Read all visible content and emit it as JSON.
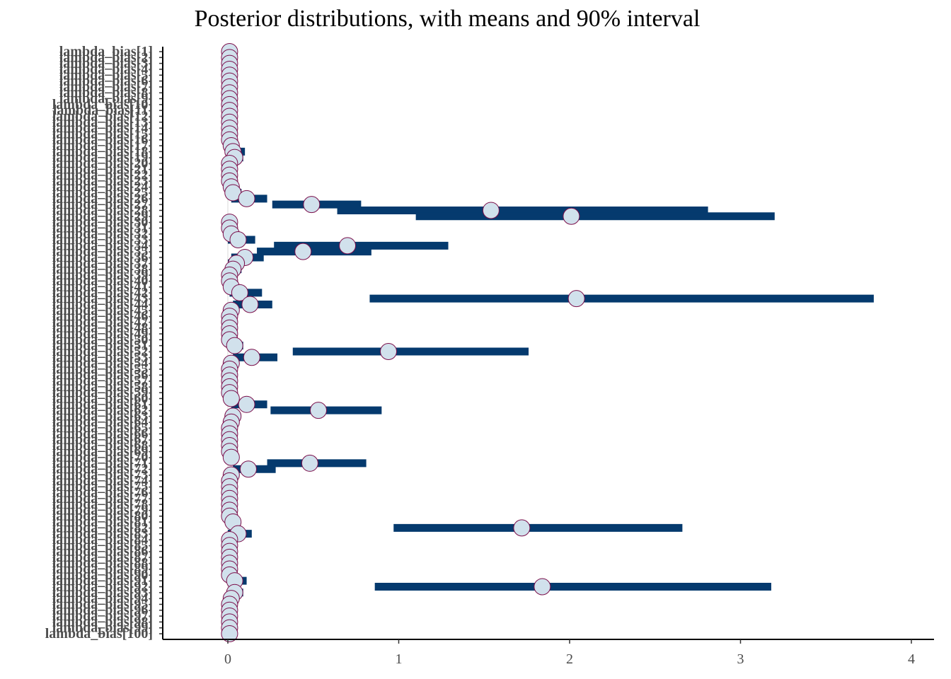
{
  "chart_data": {
    "type": "interval",
    "title": "Posterior distributions, with means and 90% interval",
    "xlabel": "",
    "ylabel": "",
    "xlim": [
      -0.4,
      4.15
    ],
    "x_ticks": [
      0,
      1,
      2,
      3,
      4
    ],
    "grid": false,
    "colors": {
      "interval": "#053a6e",
      "point_fill": "#d1e1ec",
      "point_stroke": "#7b0e4a",
      "zero_line": "#d9d9d9"
    },
    "params": [
      {
        "label": "lambda_bias[1]",
        "mean": 0.01,
        "lo": 0,
        "hi": 0.04
      },
      {
        "label": "lambda_bias[2]",
        "mean": 0.01,
        "lo": 0,
        "hi": 0.04
      },
      {
        "label": "lambda_bias[3]",
        "mean": 0.01,
        "lo": 0,
        "hi": 0.04
      },
      {
        "label": "lambda_bias[4]",
        "mean": 0.01,
        "lo": 0,
        "hi": 0.04
      },
      {
        "label": "lambda_bias[5]",
        "mean": 0.01,
        "lo": 0,
        "hi": 0.04
      },
      {
        "label": "lambda_bias[6]",
        "mean": 0.01,
        "lo": 0,
        "hi": 0.04
      },
      {
        "label": "lambda_bias[7]",
        "mean": 0.01,
        "lo": 0,
        "hi": 0.04
      },
      {
        "label": "lambda_bias[8]",
        "mean": 0.01,
        "lo": 0,
        "hi": 0.04
      },
      {
        "label": "lambda_bias[9]",
        "mean": 0.01,
        "lo": 0,
        "hi": 0.04
      },
      {
        "label": "lambda_bias[10]",
        "mean": 0.01,
        "lo": 0,
        "hi": 0.04
      },
      {
        "label": "lambda_bias[11]",
        "mean": 0.01,
        "lo": 0,
        "hi": 0.04
      },
      {
        "label": "lambda_bias[12]",
        "mean": 0.01,
        "lo": 0,
        "hi": 0.04
      },
      {
        "label": "lambda_bias[13]",
        "mean": 0.01,
        "lo": 0,
        "hi": 0.04
      },
      {
        "label": "lambda_bias[14]",
        "mean": 0.01,
        "lo": 0,
        "hi": 0.04
      },
      {
        "label": "lambda_bias[15]",
        "mean": 0.01,
        "lo": 0,
        "hi": 0.04
      },
      {
        "label": "lambda_bias[16]",
        "mean": 0.01,
        "lo": 0,
        "hi": 0.04
      },
      {
        "label": "lambda_bias[17]",
        "mean": 0.02,
        "lo": 0,
        "hi": 0.05
      },
      {
        "label": "lambda_bias[18]",
        "mean": 0.03,
        "lo": 0,
        "hi": 0.1
      },
      {
        "label": "lambda_bias[19]",
        "mean": 0.04,
        "lo": 0,
        "hi": 0.09
      },
      {
        "label": "lambda_bias[20]",
        "mean": 0.01,
        "lo": 0,
        "hi": 0.04
      },
      {
        "label": "lambda_bias[21]",
        "mean": 0.01,
        "lo": 0,
        "hi": 0.04
      },
      {
        "label": "lambda_bias[22]",
        "mean": 0.01,
        "lo": 0,
        "hi": 0.04
      },
      {
        "label": "lambda_bias[23]",
        "mean": 0.01,
        "lo": 0,
        "hi": 0.05
      },
      {
        "label": "lambda_bias[24]",
        "mean": 0.02,
        "lo": 0,
        "hi": 0.06
      },
      {
        "label": "lambda_bias[25]",
        "mean": 0.03,
        "lo": 0,
        "hi": 0.08
      },
      {
        "label": "lambda_bias[26]",
        "mean": 0.11,
        "lo": 0.02,
        "hi": 0.23
      },
      {
        "label": "lambda_bias[27]",
        "mean": 0.49,
        "lo": 0.26,
        "hi": 0.78
      },
      {
        "label": "lambda_bias[28]",
        "mean": 1.54,
        "lo": 0.64,
        "hi": 2.81
      },
      {
        "label": "lambda_bias[29]",
        "mean": 2.01,
        "lo": 1.1,
        "hi": 3.2
      },
      {
        "label": "lambda_bias[30]",
        "mean": 0.01,
        "lo": 0,
        "hi": 0.04
      },
      {
        "label": "lambda_bias[31]",
        "mean": 0.01,
        "lo": 0,
        "hi": 0.04
      },
      {
        "label": "lambda_bias[32]",
        "mean": 0.02,
        "lo": 0,
        "hi": 0.05
      },
      {
        "label": "lambda_bias[33]",
        "mean": 0.06,
        "lo": 0,
        "hi": 0.16
      },
      {
        "label": "lambda_bias[34]",
        "mean": 0.7,
        "lo": 0.27,
        "hi": 1.29
      },
      {
        "label": "lambda_bias[35]",
        "mean": 0.44,
        "lo": 0.17,
        "hi": 0.84
      },
      {
        "label": "lambda_bias[36]",
        "mean": 0.1,
        "lo": 0.02,
        "hi": 0.21
      },
      {
        "label": "lambda_bias[37]",
        "mean": 0.05,
        "lo": 0,
        "hi": 0.09
      },
      {
        "label": "lambda_bias[38]",
        "mean": 0.03,
        "lo": 0,
        "hi": 0.08
      },
      {
        "label": "lambda_bias[39]",
        "mean": 0.01,
        "lo": 0,
        "hi": 0.04
      },
      {
        "label": "lambda_bias[40]",
        "mean": 0.01,
        "lo": 0,
        "hi": 0.04
      },
      {
        "label": "lambda_bias[41]",
        "mean": 0.02,
        "lo": 0,
        "hi": 0.05
      },
      {
        "label": "lambda_bias[42]",
        "mean": 0.07,
        "lo": 0.01,
        "hi": 0.2
      },
      {
        "label": "lambda_bias[43]",
        "mean": 2.04,
        "lo": 0.83,
        "hi": 3.78
      },
      {
        "label": "lambda_bias[44]",
        "mean": 0.13,
        "lo": 0.03,
        "hi": 0.26
      },
      {
        "label": "lambda_bias[45]",
        "mean": 0.02,
        "lo": 0,
        "hi": 0.05
      },
      {
        "label": "lambda_bias[46]",
        "mean": 0.01,
        "lo": 0,
        "hi": 0.04
      },
      {
        "label": "lambda_bias[47]",
        "mean": 0.01,
        "lo": 0,
        "hi": 0.04
      },
      {
        "label": "lambda_bias[48]",
        "mean": 0.01,
        "lo": 0,
        "hi": 0.04
      },
      {
        "label": "lambda_bias[49]",
        "mean": 0.01,
        "lo": 0,
        "hi": 0.04
      },
      {
        "label": "lambda_bias[50]",
        "mean": 0.01,
        "lo": 0,
        "hi": 0.04
      },
      {
        "label": "lambda_bias[51]",
        "mean": 0.04,
        "lo": 0,
        "hi": 0.09
      },
      {
        "label": "lambda_bias[52]",
        "mean": 0.94,
        "lo": 0.38,
        "hi": 1.76
      },
      {
        "label": "lambda_bias[53]",
        "mean": 0.14,
        "lo": 0.03,
        "hi": 0.29
      },
      {
        "label": "lambda_bias[54]",
        "mean": 0.02,
        "lo": 0,
        "hi": 0.05
      },
      {
        "label": "lambda_bias[55]",
        "mean": 0.01,
        "lo": 0,
        "hi": 0.04
      },
      {
        "label": "lambda_bias[56]",
        "mean": 0.01,
        "lo": 0,
        "hi": 0.04
      },
      {
        "label": "lambda_bias[57]",
        "mean": 0.01,
        "lo": 0,
        "hi": 0.04
      },
      {
        "label": "lambda_bias[58]",
        "mean": 0.01,
        "lo": 0,
        "hi": 0.04
      },
      {
        "label": "lambda_bias[59]",
        "mean": 0.01,
        "lo": 0,
        "hi": 0.04
      },
      {
        "label": "lambda_bias[60]",
        "mean": 0.02,
        "lo": 0,
        "hi": 0.05
      },
      {
        "label": "lambda_bias[61]",
        "mean": 0.11,
        "lo": 0.02,
        "hi": 0.23
      },
      {
        "label": "lambda_bias[62]",
        "mean": 0.53,
        "lo": 0.25,
        "hi": 0.9
      },
      {
        "label": "lambda_bias[63]",
        "mean": 0.03,
        "lo": 0,
        "hi": 0.07
      },
      {
        "label": "lambda_bias[64]",
        "mean": 0.02,
        "lo": 0,
        "hi": 0.05
      },
      {
        "label": "lambda_bias[65]",
        "mean": 0.01,
        "lo": 0,
        "hi": 0.04
      },
      {
        "label": "lambda_bias[66]",
        "mean": 0.01,
        "lo": 0,
        "hi": 0.04
      },
      {
        "label": "lambda_bias[67]",
        "mean": 0.01,
        "lo": 0,
        "hi": 0.04
      },
      {
        "label": "lambda_bias[68]",
        "mean": 0.01,
        "lo": 0,
        "hi": 0.04
      },
      {
        "label": "lambda_bias[69]",
        "mean": 0.01,
        "lo": 0,
        "hi": 0.04
      },
      {
        "label": "lambda_bias[70]",
        "mean": 0.02,
        "lo": 0,
        "hi": 0.05
      },
      {
        "label": "lambda_bias[71]",
        "mean": 0.48,
        "lo": 0.23,
        "hi": 0.81
      },
      {
        "label": "lambda_bias[72]",
        "mean": 0.12,
        "lo": 0.03,
        "hi": 0.28
      },
      {
        "label": "lambda_bias[73]",
        "mean": 0.02,
        "lo": 0,
        "hi": 0.05
      },
      {
        "label": "lambda_bias[74]",
        "mean": 0.01,
        "lo": 0,
        "hi": 0.04
      },
      {
        "label": "lambda_bias[75]",
        "mean": 0.01,
        "lo": 0,
        "hi": 0.04
      },
      {
        "label": "lambda_bias[76]",
        "mean": 0.01,
        "lo": 0,
        "hi": 0.04
      },
      {
        "label": "lambda_bias[77]",
        "mean": 0.01,
        "lo": 0,
        "hi": 0.04
      },
      {
        "label": "lambda_bias[78]",
        "mean": 0.01,
        "lo": 0,
        "hi": 0.04
      },
      {
        "label": "lambda_bias[79]",
        "mean": 0.01,
        "lo": 0,
        "hi": 0.04
      },
      {
        "label": "lambda_bias[80]",
        "mean": 0.01,
        "lo": 0,
        "hi": 0.04
      },
      {
        "label": "lambda_bias[81]",
        "mean": 0.03,
        "lo": 0,
        "hi": 0.07
      },
      {
        "label": "lambda_bias[82]",
        "mean": 1.72,
        "lo": 0.97,
        "hi": 2.66
      },
      {
        "label": "lambda_bias[83]",
        "mean": 0.06,
        "lo": 0,
        "hi": 0.14
      },
      {
        "label": "lambda_bias[84]",
        "mean": 0.01,
        "lo": 0,
        "hi": 0.04
      },
      {
        "label": "lambda_bias[85]",
        "mean": 0.01,
        "lo": 0,
        "hi": 0.04
      },
      {
        "label": "lambda_bias[86]",
        "mean": 0.01,
        "lo": 0,
        "hi": 0.04
      },
      {
        "label": "lambda_bias[87]",
        "mean": 0.01,
        "lo": 0,
        "hi": 0.04
      },
      {
        "label": "lambda_bias[88]",
        "mean": 0.01,
        "lo": 0,
        "hi": 0.04
      },
      {
        "label": "lambda_bias[89]",
        "mean": 0.01,
        "lo": 0,
        "hi": 0.04
      },
      {
        "label": "lambda_bias[90]",
        "mean": 0.01,
        "lo": 0,
        "hi": 0.04
      },
      {
        "label": "lambda_bias[91]",
        "mean": 0.04,
        "lo": 0,
        "hi": 0.11
      },
      {
        "label": "lambda_bias[92]",
        "mean": 1.84,
        "lo": 0.86,
        "hi": 3.18
      },
      {
        "label": "lambda_bias[93]",
        "mean": 0.04,
        "lo": 0,
        "hi": 0.09
      },
      {
        "label": "lambda_bias[94]",
        "mean": 0.02,
        "lo": 0,
        "hi": 0.05
      },
      {
        "label": "lambda_bias[95]",
        "mean": 0.01,
        "lo": 0,
        "hi": 0.04
      },
      {
        "label": "lambda_bias[96]",
        "mean": 0.01,
        "lo": 0,
        "hi": 0.04
      },
      {
        "label": "lambda_bias[97]",
        "mean": 0.01,
        "lo": 0,
        "hi": 0.04
      },
      {
        "label": "lambda_bias[98]",
        "mean": 0.01,
        "lo": 0,
        "hi": 0.04
      },
      {
        "label": "lambda_bias[99]",
        "mean": 0.01,
        "lo": 0,
        "hi": 0.04
      },
      {
        "label": "lambda_bias[100]",
        "mean": 0.01,
        "lo": 0,
        "hi": 0.04
      }
    ]
  }
}
